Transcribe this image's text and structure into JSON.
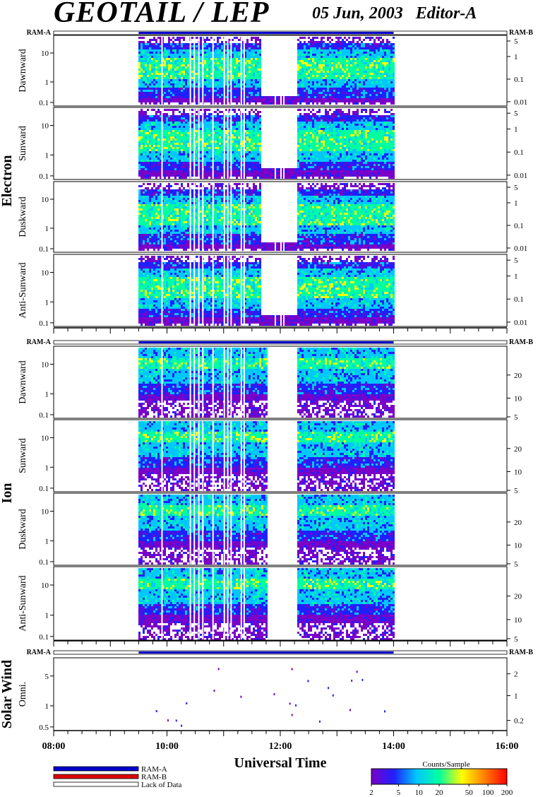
{
  "header": {
    "title": "GEOTAIL / LEP",
    "date": "05 Jun, 2003",
    "editor": "Editor-A"
  },
  "chart_data": {
    "type": "heatmap",
    "xlabel": "Universal Time",
    "x_ticks": [
      "08:00",
      "10:00",
      "12:00",
      "14:00",
      "16:00"
    ],
    "xlim_hours": [
      8,
      16
    ],
    "data_coverage_hours": [
      9.5,
      14.0
    ],
    "data_gap_hours": [
      9.9,
      10.4,
      10.47,
      10.55,
      10.62,
      10.8,
      11.0,
      11.06,
      11.12,
      11.3,
      11.35,
      11.9,
      12.0,
      12.05
    ],
    "ram_labels": {
      "left": "RAM-A",
      "right": "RAM-B"
    },
    "groups": [
      {
        "name": "Electron",
        "panels": [
          "Dawnward",
          "Sunward",
          "Duskward",
          "Anti-Sunward"
        ],
        "left_ticks": [
          "10",
          "1",
          "0.1"
        ],
        "right_ticks": [
          "5",
          "1",
          "0.1",
          "0.01"
        ]
      },
      {
        "name": "Ion",
        "panels": [
          "Dawnward",
          "Sunward",
          "Duskward",
          "Anti-Sunward"
        ],
        "left_ticks": [
          "10",
          "1",
          "0.1"
        ],
        "right_ticks": [
          "20",
          "10",
          "5"
        ]
      },
      {
        "name": "Solar Wind",
        "panels": [
          "Omni."
        ],
        "left_ticks": [
          "5",
          "1",
          "0.5"
        ],
        "right_ticks": [
          "2",
          "1",
          "0.2"
        ]
      }
    ],
    "legend": {
      "items": [
        {
          "label": "RAM-A",
          "color": "#0000cc"
        },
        {
          "label": "RAM-B",
          "color": "#dd0000"
        },
        {
          "label": "Lack of Data",
          "color": "#ffffff"
        }
      ]
    },
    "colorbar": {
      "title": "Counts/Sample",
      "ticks": [
        "2",
        "5",
        "10",
        "20",
        "50",
        "100",
        "200"
      ],
      "colors": [
        "#7a00c8",
        "#2020ff",
        "#00c8ff",
        "#00ffa0",
        "#ffff00",
        "#ff8000",
        "#ff0000"
      ]
    }
  }
}
